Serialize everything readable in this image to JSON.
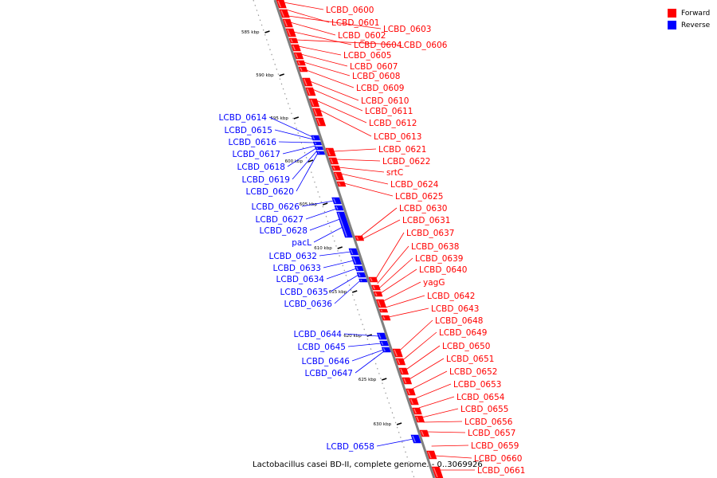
{
  "colors": {
    "forward": "#ff0000",
    "reverse": "#0000ff",
    "backbone": "#808080"
  },
  "legend": {
    "forward_label": "Forward",
    "reverse_label": "Reverse"
  },
  "caption": "Lactobacillus casei BD-II, complete genome. - 0..3069926",
  "ticks": [
    "585 kbp",
    "590 kbp",
    "595 kbp",
    "600 kbp",
    "605 kbp",
    "610 kbp",
    "615 kbp",
    "620 kbp",
    "625 kbp",
    "630 kbp"
  ],
  "forward_genes": [
    "LCBD_0600",
    "LCBD_0601",
    "LCBD_0603",
    "LCBD_0602",
    "LCBD_0604",
    "LCBD_0606",
    "LCBD_0605",
    "LCBD_0607",
    "LCBD_0608",
    "LCBD_0609",
    "LCBD_0610",
    "LCBD_0611",
    "LCBD_0612",
    "LCBD_0613",
    "LCBD_0621",
    "LCBD_0622",
    "srtC",
    "LCBD_0624",
    "LCBD_0625",
    "LCBD_0630",
    "LCBD_0631",
    "LCBD_0637",
    "LCBD_0638",
    "LCBD_0639",
    "LCBD_0640",
    "yagG",
    "LCBD_0642",
    "LCBD_0643",
    "LCBD_0648",
    "LCBD_0649",
    "LCBD_0650",
    "LCBD_0651",
    "LCBD_0652",
    "LCBD_0653",
    "LCBD_0654",
    "LCBD_0655",
    "LCBD_0656",
    "LCBD_0657",
    "LCBD_0659",
    "LCBD_0660",
    "LCBD_0661"
  ],
  "reverse_genes": [
    "LCBD_0614",
    "LCBD_0615",
    "LCBD_0616",
    "LCBD_0617",
    "LCBD_0618",
    "LCBD_0619",
    "LCBD_0620",
    "LCBD_0626",
    "LCBD_0627",
    "LCBD_0628",
    "pacL",
    "LCBD_0632",
    "LCBD_0633",
    "LCBD_0634",
    "LCBD_0635",
    "LCBD_0636",
    "LCBD_0644",
    "LCBD_0645",
    "LCBD_0646",
    "LCBD_0647",
    "LCBD_0658"
  ]
}
